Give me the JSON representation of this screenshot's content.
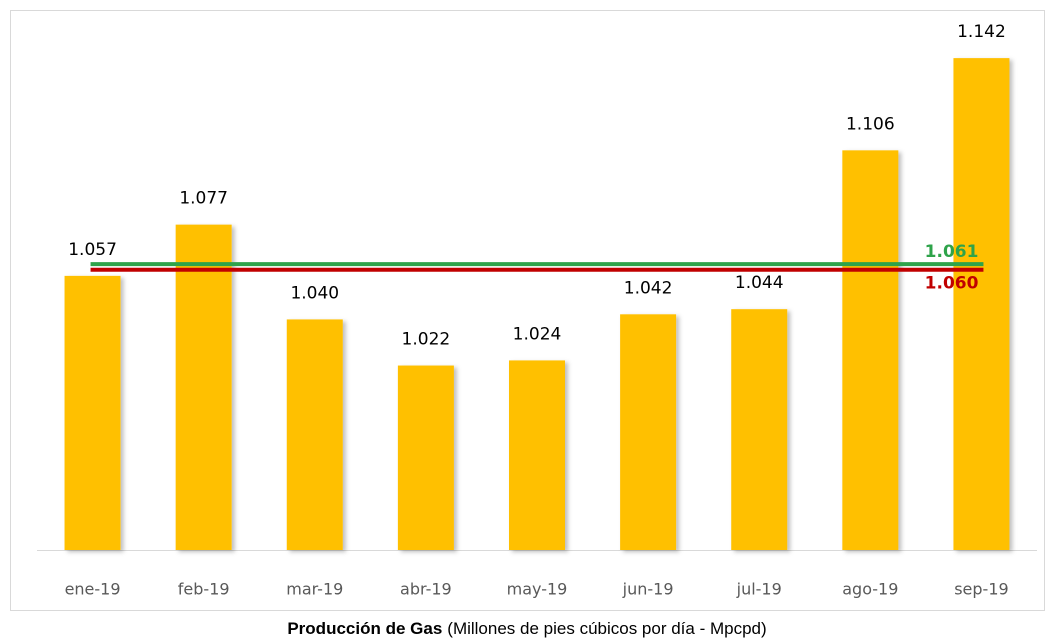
{
  "chart_data": {
    "type": "bar",
    "title": "Producción de Gas",
    "subtitle": "(Millones de pies cúbicos por día - Mpcpd)",
    "categories": [
      "ene-19",
      "feb-19",
      "mar-19",
      "abr-19",
      "may-19",
      "jun-19",
      "jul-19",
      "ago-19",
      "sep-19"
    ],
    "values": [
      1.057,
      1.077,
      1.04,
      1.022,
      1.024,
      1.042,
      1.044,
      1.106,
      1.142
    ],
    "value_labels": [
      "1.057",
      "1.077",
      "1.040",
      "1.022",
      "1.024",
      "1.042",
      "1.044",
      "1.106",
      "1.142"
    ],
    "color": "#ffc000",
    "ylim": [
      0.95,
      1.16
    ],
    "reference_lines": [
      {
        "value": 1.061,
        "label": "1.061",
        "color": "#2ea34a"
      },
      {
        "value": 1.06,
        "label": "1.060",
        "color": "#c00000"
      }
    ]
  }
}
